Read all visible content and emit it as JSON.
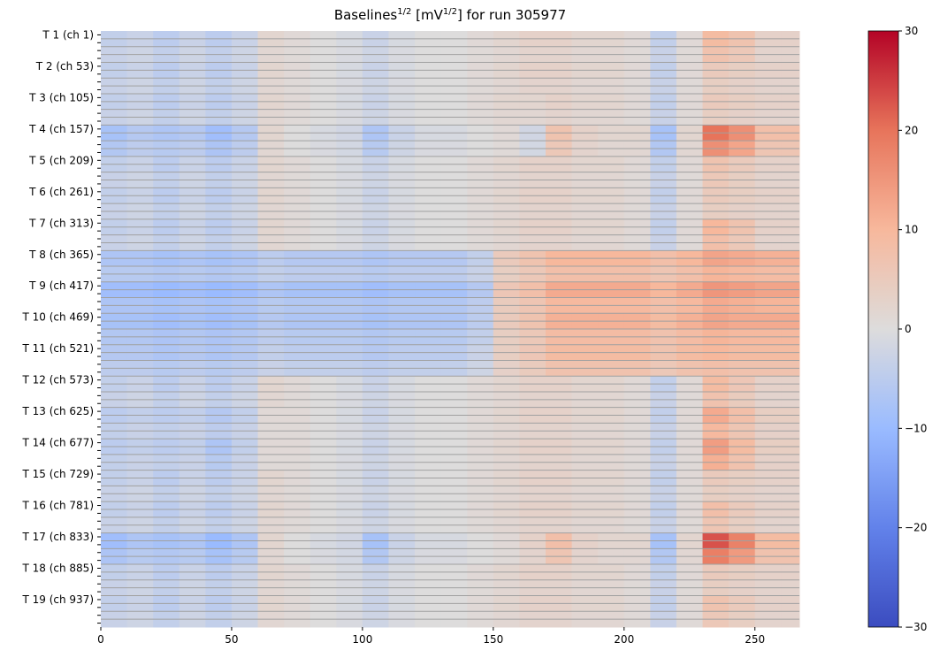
{
  "chart_data": {
    "type": "heatmap",
    "title_parts": [
      "Baselines",
      "1/2",
      " [mV",
      "1/2",
      "] for run 305977"
    ],
    "xlabel": "",
    "ylabel": "",
    "xlim": [
      0,
      267
    ],
    "x_ticks": [
      0,
      50,
      100,
      150,
      200,
      250
    ],
    "x_bin_edges": [
      0,
      10,
      20,
      30,
      40,
      50,
      60,
      70,
      80,
      90,
      100,
      110,
      120,
      130,
      140,
      150,
      160,
      170,
      180,
      190,
      200,
      210,
      220,
      230,
      240,
      250,
      260,
      267
    ],
    "rows_per_label": 4,
    "y_tick_labels": [
      "T 1 (ch 1)",
      "T 2 (ch 53)",
      "T 3 (ch 105)",
      "T 4 (ch 157)",
      "T 5 (ch 209)",
      "T 6 (ch 261)",
      "T 7 (ch 313)",
      "T 8 (ch 365)",
      "T 9 (ch 417)",
      "T 10 (ch 469)",
      "T 11 (ch 521)",
      "T 12 (ch 573)",
      "T 13 (ch 625)",
      "T 14 (ch 677)",
      "T 15 (ch 729)",
      "T 16 (ch 781)",
      "T 17 (ch 833)",
      "T 18 (ch 885)",
      "T 19 (ch 937)"
    ],
    "values": [
      [
        -4,
        -3,
        -5,
        -3,
        -5,
        -3,
        2,
        1,
        0,
        -1,
        -3,
        -1,
        0,
        0,
        1,
        2,
        3,
        3,
        2,
        2,
        1,
        -4,
        1,
        9,
        7,
        3,
        3
      ],
      [
        -4,
        -3,
        -5,
        -3,
        -5,
        -3,
        2,
        1,
        0,
        -1,
        -3,
        -1,
        0,
        0,
        1,
        2,
        3,
        3,
        2,
        2,
        1,
        -4,
        1,
        5,
        4,
        3,
        3
      ],
      [
        -4,
        -3,
        -5,
        -3,
        -5,
        -3,
        2,
        1,
        0,
        -1,
        -3,
        -1,
        0,
        0,
        1,
        2,
        2,
        3,
        2,
        2,
        1,
        -4,
        1,
        5,
        4,
        3,
        3
      ],
      [
        -8,
        -6,
        -7,
        -6,
        -9,
        -6,
        2,
        0,
        -1,
        -2,
        -7,
        -3,
        -1,
        -1,
        0,
        1,
        -2,
        7,
        3,
        2,
        2,
        -8,
        2,
        20,
        16,
        8,
        8
      ],
      [
        -4,
        -3,
        -5,
        -3,
        -5,
        -3,
        2,
        1,
        0,
        -1,
        -3,
        -1,
        0,
        0,
        1,
        2,
        3,
        3,
        2,
        2,
        1,
        -4,
        1,
        7,
        5,
        3,
        3
      ],
      [
        -4,
        -3,
        -5,
        -3,
        -5,
        -3,
        2,
        1,
        0,
        -1,
        -3,
        -1,
        0,
        0,
        1,
        2,
        3,
        3,
        2,
        2,
        1,
        -4,
        1,
        5,
        4,
        3,
        3
      ],
      [
        -4,
        -3,
        -5,
        -3,
        -5,
        -3,
        2,
        1,
        0,
        -1,
        -3,
        -1,
        0,
        0,
        1,
        2,
        3,
        3,
        2,
        2,
        1,
        -4,
        1,
        10,
        7,
        3,
        3
      ],
      [
        -7,
        -7,
        -8,
        -7,
        -8,
        -7,
        -5,
        -6,
        -6,
        -6,
        -7,
        -6,
        -6,
        -6,
        -4,
        5,
        7,
        10,
        10,
        10,
        10,
        8,
        10,
        13,
        12,
        11,
        11
      ],
      [
        -9,
        -9,
        -10,
        -9,
        -10,
        -9,
        -7,
        -8,
        -8,
        -8,
        -9,
        -8,
        -8,
        -8,
        -6,
        6,
        8,
        12,
        12,
        12,
        12,
        10,
        12,
        15,
        14,
        13,
        13
      ],
      [
        -8,
        -8,
        -9,
        -8,
        -9,
        -8,
        -6,
        -7,
        -7,
        -7,
        -8,
        -7,
        -7,
        -7,
        -5,
        5,
        7,
        11,
        11,
        11,
        11,
        9,
        11,
        13,
        12,
        12,
        12
      ],
      [
        -6,
        -6,
        -7,
        -6,
        -7,
        -6,
        -4,
        -5,
        -5,
        -5,
        -6,
        -5,
        -5,
        -5,
        -3,
        4,
        6,
        9,
        9,
        9,
        9,
        7,
        9,
        10,
        9,
        9,
        9
      ],
      [
        -4,
        -3,
        -5,
        -3,
        -5,
        -3,
        2,
        1,
        0,
        -1,
        -3,
        -1,
        0,
        0,
        1,
        2,
        3,
        3,
        2,
        2,
        1,
        -4,
        1,
        9,
        6,
        3,
        3
      ],
      [
        -5,
        -4,
        -5,
        -4,
        -6,
        -4,
        1,
        1,
        0,
        -1,
        -3,
        -1,
        0,
        0,
        1,
        2,
        3,
        3,
        2,
        2,
        1,
        -4,
        1,
        12,
        8,
        4,
        4
      ],
      [
        -5,
        -4,
        -5,
        -4,
        -7,
        -4,
        1,
        1,
        0,
        -1,
        -3,
        -1,
        0,
        0,
        1,
        2,
        3,
        3,
        2,
        2,
        1,
        -4,
        1,
        14,
        9,
        4,
        4
      ],
      [
        -4,
        -3,
        -5,
        -3,
        -5,
        -3,
        2,
        1,
        0,
        -1,
        -3,
        -1,
        0,
        0,
        1,
        2,
        3,
        3,
        2,
        2,
        1,
        -4,
        1,
        5,
        4,
        3,
        3
      ],
      [
        -4,
        -3,
        -5,
        -3,
        -5,
        -3,
        2,
        1,
        0,
        -1,
        -3,
        -1,
        0,
        0,
        1,
        2,
        3,
        3,
        2,
        2,
        1,
        -4,
        1,
        8,
        5,
        3,
        3
      ],
      [
        -9,
        -7,
        -8,
        -7,
        -10,
        -7,
        2,
        0,
        -1,
        -2,
        -8,
        -3,
        -1,
        -1,
        0,
        1,
        3,
        8,
        3,
        2,
        2,
        -8,
        2,
        23,
        18,
        9,
        9
      ],
      [
        -4,
        -3,
        -5,
        -3,
        -5,
        -3,
        2,
        1,
        0,
        -1,
        -3,
        -1,
        0,
        0,
        1,
        2,
        3,
        3,
        2,
        2,
        1,
        -4,
        1,
        5,
        4,
        3,
        3
      ],
      [
        -4,
        -3,
        -5,
        -3,
        -5,
        -3,
        2,
        1,
        0,
        -1,
        -3,
        -1,
        0,
        0,
        1,
        2,
        3,
        3,
        2,
        2,
        1,
        -4,
        1,
        7,
        5,
        3,
        3
      ]
    ],
    "colorbar": {
      "colormap": "coolwarm",
      "vmin": -30,
      "vmax": 30,
      "ticks": [
        30,
        20,
        10,
        0,
        -10,
        -20,
        -30
      ],
      "tick_labels": [
        "30",
        "20",
        "10",
        "0",
        "−10",
        "−20",
        "−30"
      ]
    },
    "grid_line_color": "#a0a0a0"
  }
}
